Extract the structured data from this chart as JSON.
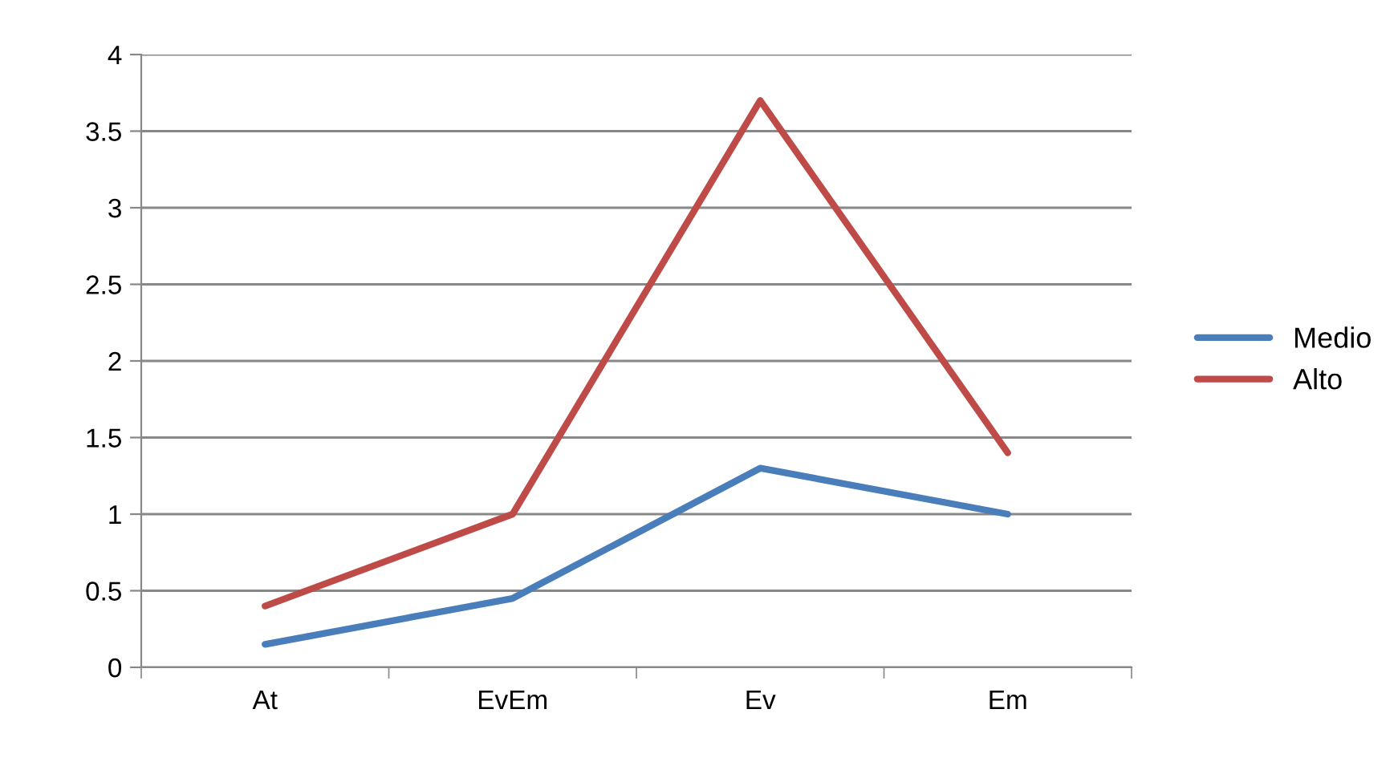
{
  "chart_data": {
    "type": "line",
    "categories": [
      "At",
      "EvEm",
      "Ev",
      "Em"
    ],
    "series": [
      {
        "name": "Medio",
        "color": "#4a7ebb",
        "values": [
          0.15,
          0.45,
          1.3,
          1.0
        ]
      },
      {
        "name": "Alto",
        "color": "#be4b48",
        "values": [
          0.4,
          1.0,
          3.7,
          1.4
        ]
      }
    ],
    "ylim": [
      0,
      4
    ],
    "yticks": [
      0,
      0.5,
      1,
      1.5,
      2,
      2.5,
      3,
      3.5,
      4
    ],
    "grid": "y",
    "legend": "right",
    "marker": "none",
    "line_style": "solid"
  }
}
